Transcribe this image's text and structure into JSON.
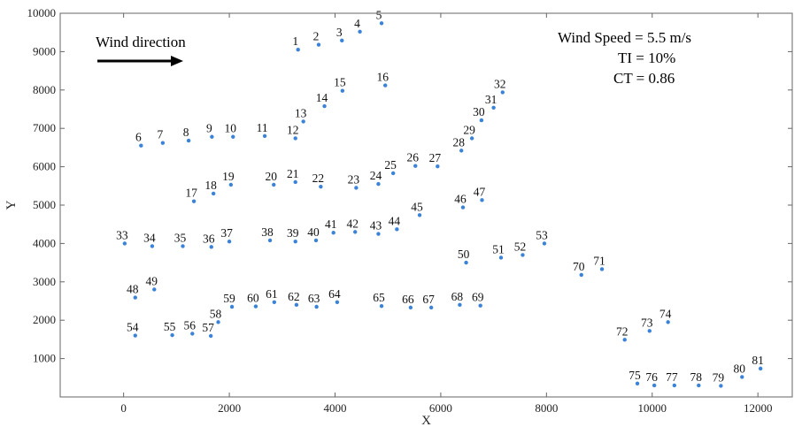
{
  "chart_data": {
    "type": "scatter",
    "xlabel": "X",
    "ylabel": "Y",
    "xlim": [
      -1200,
      12650
    ],
    "ylim": [
      0,
      10000
    ],
    "xticks": [
      0,
      2000,
      4000,
      6000,
      8000,
      10000,
      12000
    ],
    "yticks": [
      1000,
      2000,
      3000,
      4000,
      5000,
      6000,
      7000,
      8000,
      9000,
      10000
    ],
    "grid": false,
    "marker_color": "#3b83d8",
    "annotations": {
      "wind_direction": "Wind direction",
      "wind_speed": "Wind Speed = 5.5 m/s",
      "ti": "TI = 10%",
      "ct": "CT = 0.86"
    },
    "points": [
      {
        "id": "1",
        "x": 3300,
        "y": 9050
      },
      {
        "id": "2",
        "x": 3690,
        "y": 9180
      },
      {
        "id": "3",
        "x": 4130,
        "y": 9290
      },
      {
        "id": "4",
        "x": 4470,
        "y": 9520
      },
      {
        "id": "5",
        "x": 4880,
        "y": 9740
      },
      {
        "id": "6",
        "x": 330,
        "y": 6550
      },
      {
        "id": "7",
        "x": 740,
        "y": 6620
      },
      {
        "id": "8",
        "x": 1230,
        "y": 6680
      },
      {
        "id": "9",
        "x": 1670,
        "y": 6780
      },
      {
        "id": "10",
        "x": 2070,
        "y": 6780
      },
      {
        "id": "11",
        "x": 2670,
        "y": 6800
      },
      {
        "id": "12",
        "x": 3250,
        "y": 6740
      },
      {
        "id": "13",
        "x": 3400,
        "y": 7180
      },
      {
        "id": "14",
        "x": 3800,
        "y": 7580
      },
      {
        "id": "15",
        "x": 4140,
        "y": 7980
      },
      {
        "id": "16",
        "x": 4950,
        "y": 8120
      },
      {
        "id": "17",
        "x": 1330,
        "y": 5100
      },
      {
        "id": "18",
        "x": 1700,
        "y": 5300
      },
      {
        "id": "19",
        "x": 2030,
        "y": 5530
      },
      {
        "id": "20",
        "x": 2840,
        "y": 5530
      },
      {
        "id": "21",
        "x": 3250,
        "y": 5600
      },
      {
        "id": "22",
        "x": 3730,
        "y": 5480
      },
      {
        "id": "23",
        "x": 4400,
        "y": 5450
      },
      {
        "id": "24",
        "x": 4820,
        "y": 5550
      },
      {
        "id": "25",
        "x": 5100,
        "y": 5830
      },
      {
        "id": "26",
        "x": 5520,
        "y": 6020
      },
      {
        "id": "27",
        "x": 5940,
        "y": 6010
      },
      {
        "id": "28",
        "x": 6390,
        "y": 6420
      },
      {
        "id": "29",
        "x": 6590,
        "y": 6740
      },
      {
        "id": "30",
        "x": 6770,
        "y": 7210
      },
      {
        "id": "31",
        "x": 7000,
        "y": 7540
      },
      {
        "id": "32",
        "x": 7170,
        "y": 7940
      },
      {
        "id": "33",
        "x": 20,
        "y": 4000
      },
      {
        "id": "34",
        "x": 540,
        "y": 3930
      },
      {
        "id": "35",
        "x": 1120,
        "y": 3930
      },
      {
        "id": "36",
        "x": 1660,
        "y": 3910
      },
      {
        "id": "37",
        "x": 2000,
        "y": 4050
      },
      {
        "id": "38",
        "x": 2770,
        "y": 4080
      },
      {
        "id": "39",
        "x": 3250,
        "y": 4050
      },
      {
        "id": "40",
        "x": 3640,
        "y": 4080
      },
      {
        "id": "41",
        "x": 3970,
        "y": 4280
      },
      {
        "id": "42",
        "x": 4380,
        "y": 4300
      },
      {
        "id": "43",
        "x": 4820,
        "y": 4250
      },
      {
        "id": "44",
        "x": 5170,
        "y": 4370
      },
      {
        "id": "45",
        "x": 5600,
        "y": 4740
      },
      {
        "id": "46",
        "x": 6420,
        "y": 4940
      },
      {
        "id": "47",
        "x": 6780,
        "y": 5130
      },
      {
        "id": "48",
        "x": 220,
        "y": 2590
      },
      {
        "id": "49",
        "x": 580,
        "y": 2800
      },
      {
        "id": "50",
        "x": 6480,
        "y": 3500
      },
      {
        "id": "51",
        "x": 7140,
        "y": 3630
      },
      {
        "id": "52",
        "x": 7550,
        "y": 3700
      },
      {
        "id": "53",
        "x": 7960,
        "y": 4000
      },
      {
        "id": "54",
        "x": 220,
        "y": 1600
      },
      {
        "id": "55",
        "x": 920,
        "y": 1610
      },
      {
        "id": "56",
        "x": 1300,
        "y": 1650
      },
      {
        "id": "57",
        "x": 1650,
        "y": 1590
      },
      {
        "id": "58",
        "x": 1790,
        "y": 1950
      },
      {
        "id": "59",
        "x": 2050,
        "y": 2350
      },
      {
        "id": "60",
        "x": 2500,
        "y": 2360
      },
      {
        "id": "61",
        "x": 2850,
        "y": 2470
      },
      {
        "id": "62",
        "x": 3270,
        "y": 2400
      },
      {
        "id": "63",
        "x": 3650,
        "y": 2350
      },
      {
        "id": "64",
        "x": 4040,
        "y": 2470
      },
      {
        "id": "65",
        "x": 4880,
        "y": 2370
      },
      {
        "id": "66",
        "x": 5430,
        "y": 2330
      },
      {
        "id": "67",
        "x": 5820,
        "y": 2330
      },
      {
        "id": "68",
        "x": 6360,
        "y": 2400
      },
      {
        "id": "69",
        "x": 6750,
        "y": 2380
      },
      {
        "id": "70",
        "x": 8660,
        "y": 3180
      },
      {
        "id": "71",
        "x": 9050,
        "y": 3330
      },
      {
        "id": "72",
        "x": 9480,
        "y": 1490
      },
      {
        "id": "73",
        "x": 9950,
        "y": 1720
      },
      {
        "id": "74",
        "x": 10300,
        "y": 1950
      },
      {
        "id": "75",
        "x": 9720,
        "y": 350
      },
      {
        "id": "76",
        "x": 10040,
        "y": 300
      },
      {
        "id": "77",
        "x": 10420,
        "y": 300
      },
      {
        "id": "78",
        "x": 10880,
        "y": 300
      },
      {
        "id": "79",
        "x": 11300,
        "y": 290
      },
      {
        "id": "80",
        "x": 11700,
        "y": 520
      },
      {
        "id": "81",
        "x": 12050,
        "y": 740
      }
    ]
  }
}
